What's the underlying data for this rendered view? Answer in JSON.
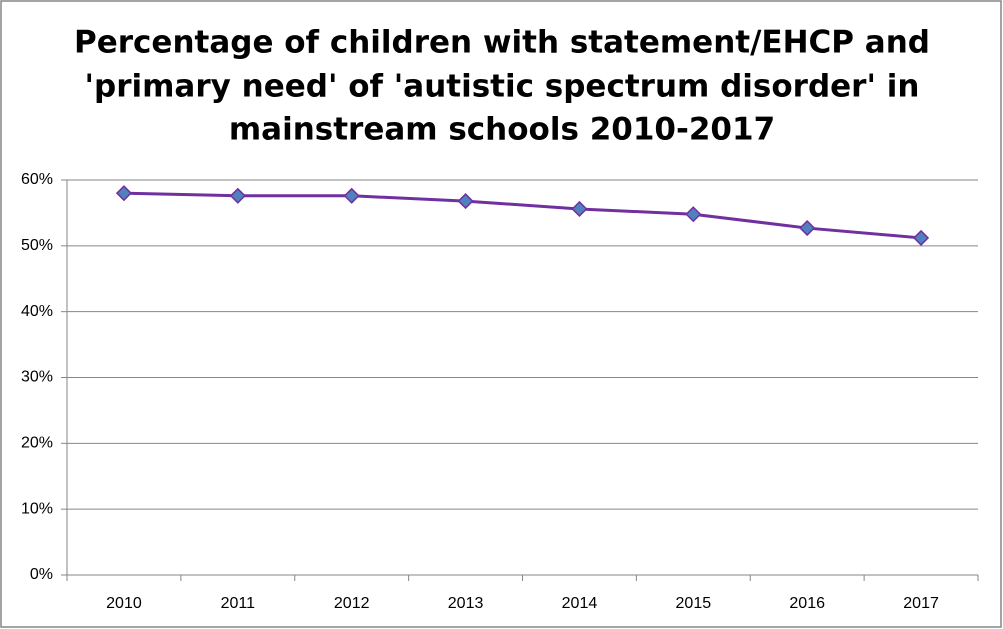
{
  "chart_data": {
    "type": "line",
    "title": [
      "Percentage of children with statement/EHCP and",
      "'primary need' of 'autistic spectrum disorder' in",
      "mainstream schools 2010-2017"
    ],
    "categories": [
      "2010",
      "2011",
      "2012",
      "2013",
      "2014",
      "2015",
      "2016",
      "2017"
    ],
    "values": [
      58.0,
      57.6,
      57.6,
      56.8,
      55.6,
      54.8,
      52.7,
      51.2
    ],
    "color": "#7030a0",
    "marker_color": "#4f81bd",
    "ylim": [
      0,
      60
    ],
    "yticks": [
      {
        "value": 0,
        "label": "0%"
      },
      {
        "value": 10,
        "label": "10%"
      },
      {
        "value": 20,
        "label": "20%"
      },
      {
        "value": 30,
        "label": "30%"
      },
      {
        "value": 40,
        "label": "40%"
      },
      {
        "value": 50,
        "label": "50%"
      },
      {
        "value": 60,
        "label": "60%"
      }
    ],
    "grid": true
  }
}
